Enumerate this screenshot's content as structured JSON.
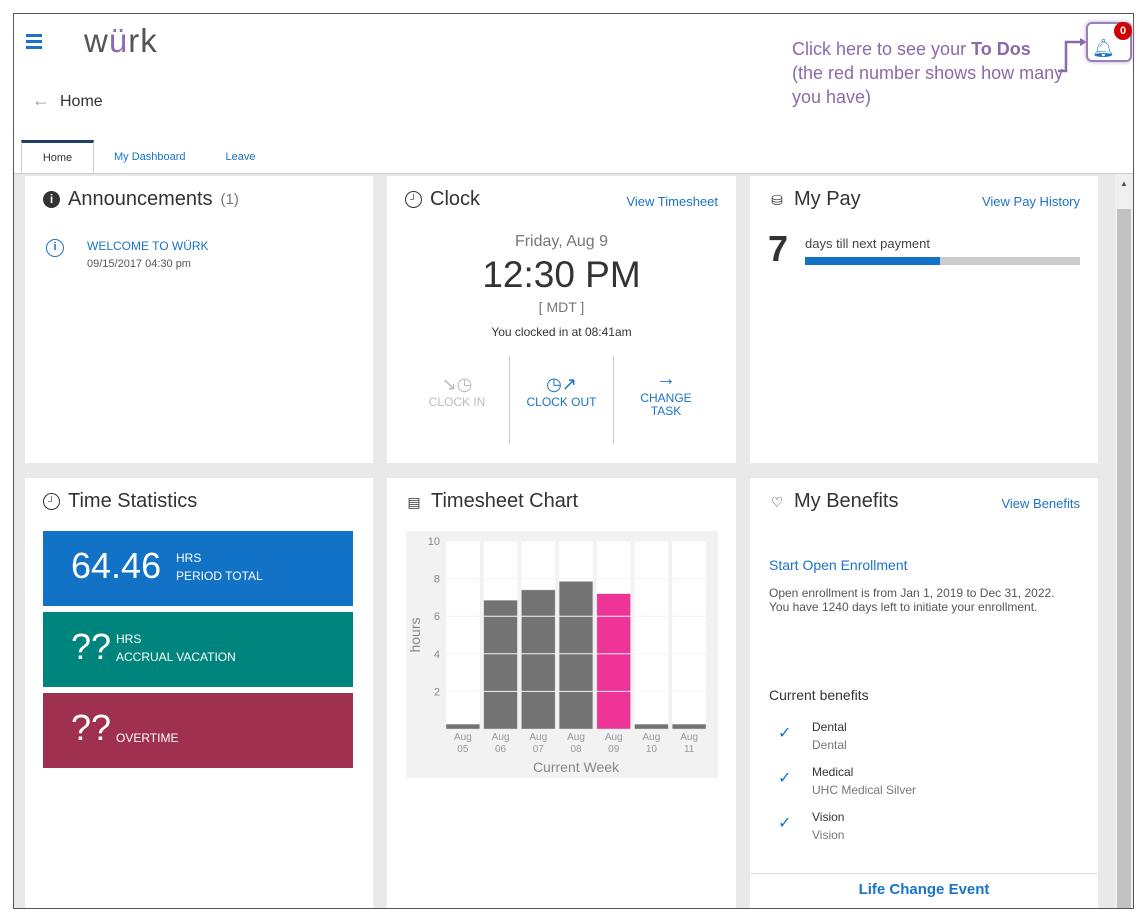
{
  "header": {
    "logo": "würk",
    "logo_pre": "w",
    "logo_u": "ü",
    "logo_post": "rk",
    "breadcrumb": "Home",
    "back_icon": "←",
    "menu_icon": "hamburger-icon"
  },
  "tabs": [
    {
      "label": "Home",
      "active": true
    },
    {
      "label": "My Dashboard"
    },
    {
      "label": "Leave"
    }
  ],
  "annotation": {
    "line1_pre": "Click here to see your ",
    "line1_bold": "To Dos",
    "line2": "(the red number shows how many you have)"
  },
  "notifications": {
    "count": "0",
    "badge_color": "#d10000"
  },
  "announcements": {
    "title": "Announcements",
    "count": "(1)",
    "items": [
      {
        "title": "WELCOME TO WÜRK",
        "date": "09/15/2017 04:30 pm"
      }
    ]
  },
  "clock": {
    "title": "Clock",
    "link": "View Timesheet",
    "date": "Friday, Aug 9",
    "time": "12:30 PM",
    "tz": "[ MDT ]",
    "status": "You clocked in at 08:41am",
    "actions": [
      {
        "label": "CLOCK IN",
        "enabled": false
      },
      {
        "label": "CLOCK OUT",
        "enabled": true
      },
      {
        "label": "CHANGE TASK",
        "enabled": true
      }
    ]
  },
  "pay": {
    "title": "My Pay",
    "link": "View Pay History",
    "days": "7",
    "days_label": "days till next payment",
    "progress": 0.49
  },
  "time_stats": {
    "title": "Time Statistics",
    "items": [
      {
        "value": "64.46",
        "unit": "HRS",
        "label": "PERIOD TOTAL",
        "color": "#1172c6"
      },
      {
        "value": "??",
        "unit": "HRS",
        "label": "ACCRUAL VACATION",
        "color": "#00847e"
      },
      {
        "value": "??",
        "unit": "",
        "label": "OVERTIME",
        "color": "#a0304f"
      }
    ]
  },
  "timesheet_chart": {
    "title": "Timesheet Chart"
  },
  "chart_data": {
    "type": "bar",
    "categories": [
      [
        "Aug",
        "05"
      ],
      [
        "Aug",
        "06"
      ],
      [
        "Aug",
        "07"
      ],
      [
        "Aug",
        "08"
      ],
      [
        "Aug",
        "09"
      ],
      [
        "Aug",
        "10"
      ],
      [
        "Aug",
        "11"
      ]
    ],
    "values": [
      0.1,
      6.85,
      7.4,
      7.85,
      7.2,
      0.1,
      0.1
    ],
    "highlight_index": 4,
    "colors": {
      "bar": "#737373",
      "highlight": "#ee3597"
    },
    "xlabel": "Current Week",
    "ylabel": "hours",
    "ylim": [
      0,
      10
    ],
    "yticks": [
      "2",
      "4",
      "6",
      "8",
      "10"
    ]
  },
  "benefits": {
    "title": "My Benefits",
    "link": "View Benefits",
    "enroll_link": "Start Open Enrollment",
    "enroll_text": "Open enrollment is from Jan 1, 2019 to Dec 31, 2022. You have 1240 days left to initiate your enrollment.",
    "current_label": "Current benefits",
    "items": [
      {
        "name": "Dental",
        "plan": "Dental"
      },
      {
        "name": "Medical",
        "plan": "UHC Medical Silver"
      },
      {
        "name": "Vision",
        "plan": "Vision"
      }
    ],
    "footer_link": "Life Change Event"
  }
}
